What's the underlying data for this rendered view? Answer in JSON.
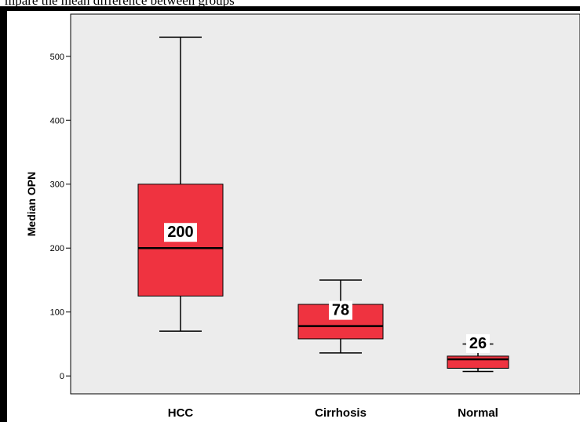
{
  "caption": "mpare the mean difference between groups",
  "chart_data": {
    "type": "box",
    "ylabel": "Median OPN",
    "xlabel": "",
    "ylim": [
      -28,
      566
    ],
    "yticks": [
      0,
      100,
      200,
      300,
      400,
      500
    ],
    "categories": [
      "HCC",
      "Cirrhosis",
      "Normal"
    ],
    "boxes": [
      {
        "category": "HCC",
        "min": 70,
        "q1": 125,
        "median": 200,
        "q3": 300,
        "max": 530,
        "label": "200"
      },
      {
        "category": "Cirrhosis",
        "min": 36,
        "q1": 58,
        "median": 78,
        "q3": 112,
        "max": 150,
        "label": "78"
      },
      {
        "category": "Normal",
        "min": 7,
        "q1": 12,
        "median": 26,
        "q3": 31,
        "max": 50,
        "label": "26"
      }
    ],
    "box_color": "#ef3340",
    "plot_background": "#ececec",
    "frame_color": "#000000",
    "grid": false,
    "legend": "none"
  }
}
